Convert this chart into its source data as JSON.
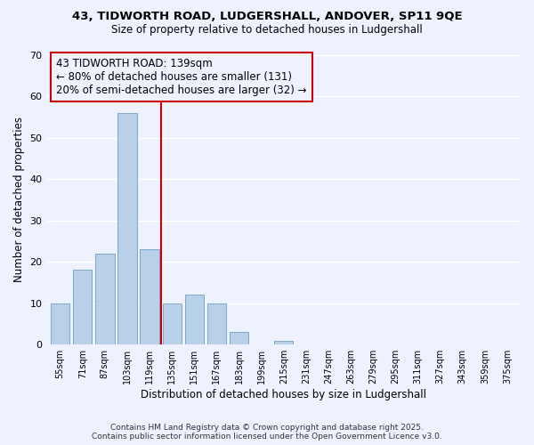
{
  "title_line1": "43, TIDWORTH ROAD, LUDGERSHALL, ANDOVER, SP11 9QE",
  "title_line2": "Size of property relative to detached houses in Ludgershall",
  "xlabel": "Distribution of detached houses by size in Ludgershall",
  "ylabel": "Number of detached properties",
  "bin_labels": [
    "55sqm",
    "71sqm",
    "87sqm",
    "103sqm",
    "119sqm",
    "135sqm",
    "151sqm",
    "167sqm",
    "183sqm",
    "199sqm",
    "215sqm",
    "231sqm",
    "247sqm",
    "263sqm",
    "279sqm",
    "295sqm",
    "311sqm",
    "327sqm",
    "343sqm",
    "359sqm",
    "375sqm"
  ],
  "bar_values": [
    10,
    18,
    22,
    56,
    23,
    10,
    12,
    10,
    3,
    0,
    1,
    0,
    0,
    0,
    0,
    0,
    0,
    0,
    0,
    0,
    0
  ],
  "bar_color": "#b8d0e8",
  "bar_edgecolor": "#7aaac8",
  "vline_color": "#cc0000",
  "annotation_text": "43 TIDWORTH ROAD: 139sqm\n← 80% of detached houses are smaller (131)\n20% of semi-detached houses are larger (32) →",
  "annotation_box_edgecolor": "#cc0000",
  "annotation_fontsize": 8.5,
  "ylim": [
    0,
    70
  ],
  "yticks": [
    0,
    10,
    20,
    30,
    40,
    50,
    60,
    70
  ],
  "background_color": "#eef2ff",
  "grid_color": "#ffffff",
  "footer_line1": "Contains HM Land Registry data © Crown copyright and database right 2025.",
  "footer_line2": "Contains public sector information licensed under the Open Government Licence v3.0.",
  "title_fontsize": 9.5,
  "subtitle_fontsize": 8.5,
  "xlabel_fontsize": 8.5,
  "ylabel_fontsize": 8.5,
  "footer_fontsize": 6.5
}
